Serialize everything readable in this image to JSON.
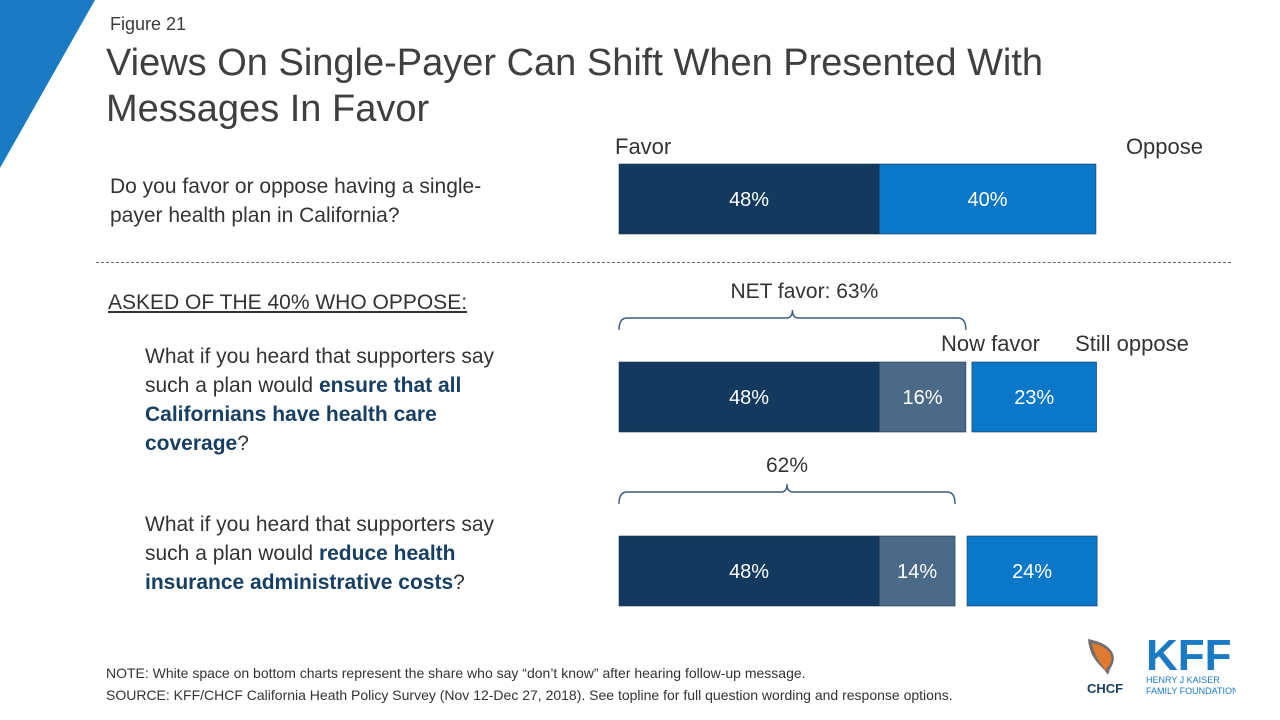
{
  "figure_label": "Figure 21",
  "title": "Views On Single-Payer Can Shift When Presented With Messages In Favor",
  "q1": {
    "text": "Do you favor or oppose having a single-payer health plan in California?"
  },
  "asked_of": "ASKED OF THE 40% WHO OPPOSE:",
  "q2": {
    "pre": "What if you heard that supporters say such a plan would ",
    "bold": "ensure that all Californians have health care coverage",
    "post": "?"
  },
  "q3": {
    "pre": "What if you heard that supporters say such a plan would ",
    "bold": "reduce health insurance administrative costs",
    "post": "?"
  },
  "notes": {
    "note": "NOTE: White space on bottom charts represent the share who say “don’t know” after hearing follow-up message.",
    "source": "SOURCE: KFF/CHCF California Heath Policy Survey (Nov 12-Dec 27, 2018). See topline for full question wording and response options."
  },
  "logos": {
    "kff": "KFF",
    "kff_sub1": "HENRY J KAISER",
    "kff_sub2": "FAMILY FOUNDATION",
    "chcf": "CHCF"
  },
  "colors": {
    "favor": "#133a5e",
    "now_favor": "#4a6a88",
    "oppose": "#0a77c9",
    "corner": "#1a7bc4"
  },
  "chart_data": {
    "type": "bar",
    "orientation": "horizontal-stacked",
    "rows": [
      {
        "label": "Initial favor/oppose",
        "segments": [
          {
            "name": "Favor",
            "value": 48,
            "label": "48%"
          },
          {
            "name": "Oppose",
            "value": 40,
            "label": "40%"
          }
        ]
      },
      {
        "label": "Ensure all Californians have health care coverage",
        "segments": [
          {
            "name": "Favor",
            "value": 48,
            "label": "48%"
          },
          {
            "name": "Now favor",
            "value": 16,
            "label": "16%"
          },
          {
            "name": "Still oppose",
            "value": 23,
            "label": "23%"
          }
        ],
        "net_label": "NET favor: 63%"
      },
      {
        "label": "Reduce health insurance administrative costs",
        "segments": [
          {
            "name": "Favor",
            "value": 48,
            "label": "48%"
          },
          {
            "name": "Now favor",
            "value": 14,
            "label": "14%"
          },
          {
            "name": "Still oppose",
            "value": 24,
            "label": "24%"
          }
        ],
        "net_label": "62%"
      }
    ],
    "column_headers": {
      "favor": "Favor",
      "oppose": "Oppose",
      "now_favor": "Now favor",
      "still_oppose": "Still oppose"
    }
  }
}
